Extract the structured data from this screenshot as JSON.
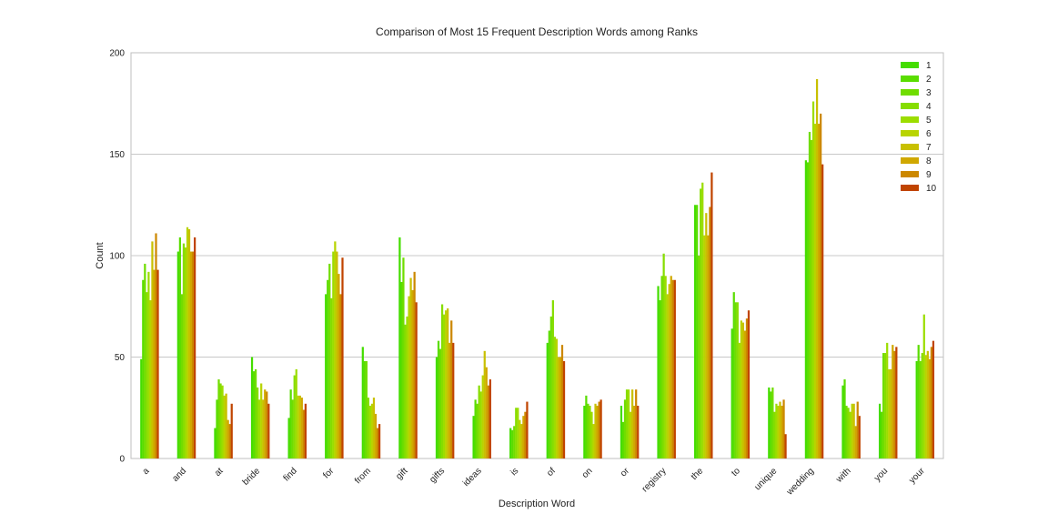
{
  "chart_data": {
    "type": "bar",
    "title": "Comparison of Most 15 Frequent Description Words among Ranks",
    "xlabel": "Description Word",
    "ylabel": "Count",
    "ylim": [
      0,
      200
    ],
    "yticks": [
      0,
      50,
      100,
      150,
      200
    ],
    "grid": true,
    "legend_position": "top-right",
    "categories": [
      "a",
      "and",
      "at",
      "bride",
      "find",
      "for",
      "from",
      "gift",
      "gifts",
      "ideas",
      "is",
      "of",
      "on",
      "or",
      "registry",
      "the",
      "to",
      "unique",
      "wedding",
      "with",
      "you",
      "your"
    ],
    "series": [
      {
        "name": "1",
        "color": "#44dd00",
        "values": [
          49,
          102,
          15,
          50,
          20,
          81,
          55,
          109,
          50,
          21,
          15,
          57,
          26,
          26,
          85,
          125,
          64,
          35,
          147,
          36,
          27,
          48
        ]
      },
      {
        "name": "2",
        "color": "#5add00",
        "values": [
          88,
          109,
          29,
          43,
          34,
          88,
          48,
          87,
          58,
          29,
          14,
          63,
          31,
          18,
          78,
          125,
          82,
          33,
          146,
          39,
          23,
          56
        ]
      },
      {
        "name": "3",
        "color": "#70dd00",
        "values": [
          96,
          81,
          39,
          44,
          29,
          96,
          48,
          99,
          54,
          27,
          16,
          70,
          27,
          29,
          90,
          100,
          77,
          35,
          161,
          26,
          52,
          48
        ]
      },
      {
        "name": "4",
        "color": "#86dd00",
        "values": [
          82,
          106,
          37,
          35,
          41,
          79,
          30,
          66,
          76,
          36,
          25,
          78,
          26,
          34,
          101,
          133,
          77,
          23,
          157,
          25,
          52,
          52
        ]
      },
      {
        "name": "5",
        "color": "#9cdd00",
        "values": [
          92,
          104,
          36,
          29,
          44,
          102,
          26,
          70,
          71,
          33,
          25,
          60,
          23,
          34,
          90,
          136,
          57,
          27,
          176,
          23,
          57,
          71
        ]
      },
      {
        "name": "6",
        "color": "#b8d400",
        "values": [
          78,
          114,
          31,
          37,
          31,
          107,
          27,
          80,
          73,
          41,
          19,
          59,
          17,
          23,
          81,
          110,
          68,
          26,
          165,
          27,
          44,
          51
        ]
      },
      {
        "name": "7",
        "color": "#c8c000",
        "values": [
          107,
          113,
          32,
          29,
          31,
          102,
          30,
          89,
          74,
          53,
          17,
          50,
          27,
          34,
          86,
          121,
          67,
          28,
          187,
          27,
          44,
          53
        ]
      },
      {
        "name": "8",
        "color": "#d0a800",
        "values": [
          93,
          102,
          19,
          34,
          30,
          91,
          22,
          83,
          57,
          45,
          21,
          50,
          26,
          26,
          90,
          110,
          63,
          26,
          165,
          16,
          56,
          49
        ]
      },
      {
        "name": "9",
        "color": "#cc8800",
        "values": [
          111,
          102,
          17,
          33,
          24,
          81,
          15,
          92,
          68,
          36,
          23,
          56,
          28,
          34,
          88,
          124,
          69,
          29,
          170,
          28,
          53,
          55
        ]
      },
      {
        "name": "10",
        "color": "#c04400",
        "values": [
          93,
          109,
          27,
          27,
          27,
          99,
          17,
          77,
          57,
          39,
          28,
          48,
          29,
          26,
          88,
          141,
          73,
          12,
          145,
          21,
          55,
          58
        ]
      }
    ]
  }
}
